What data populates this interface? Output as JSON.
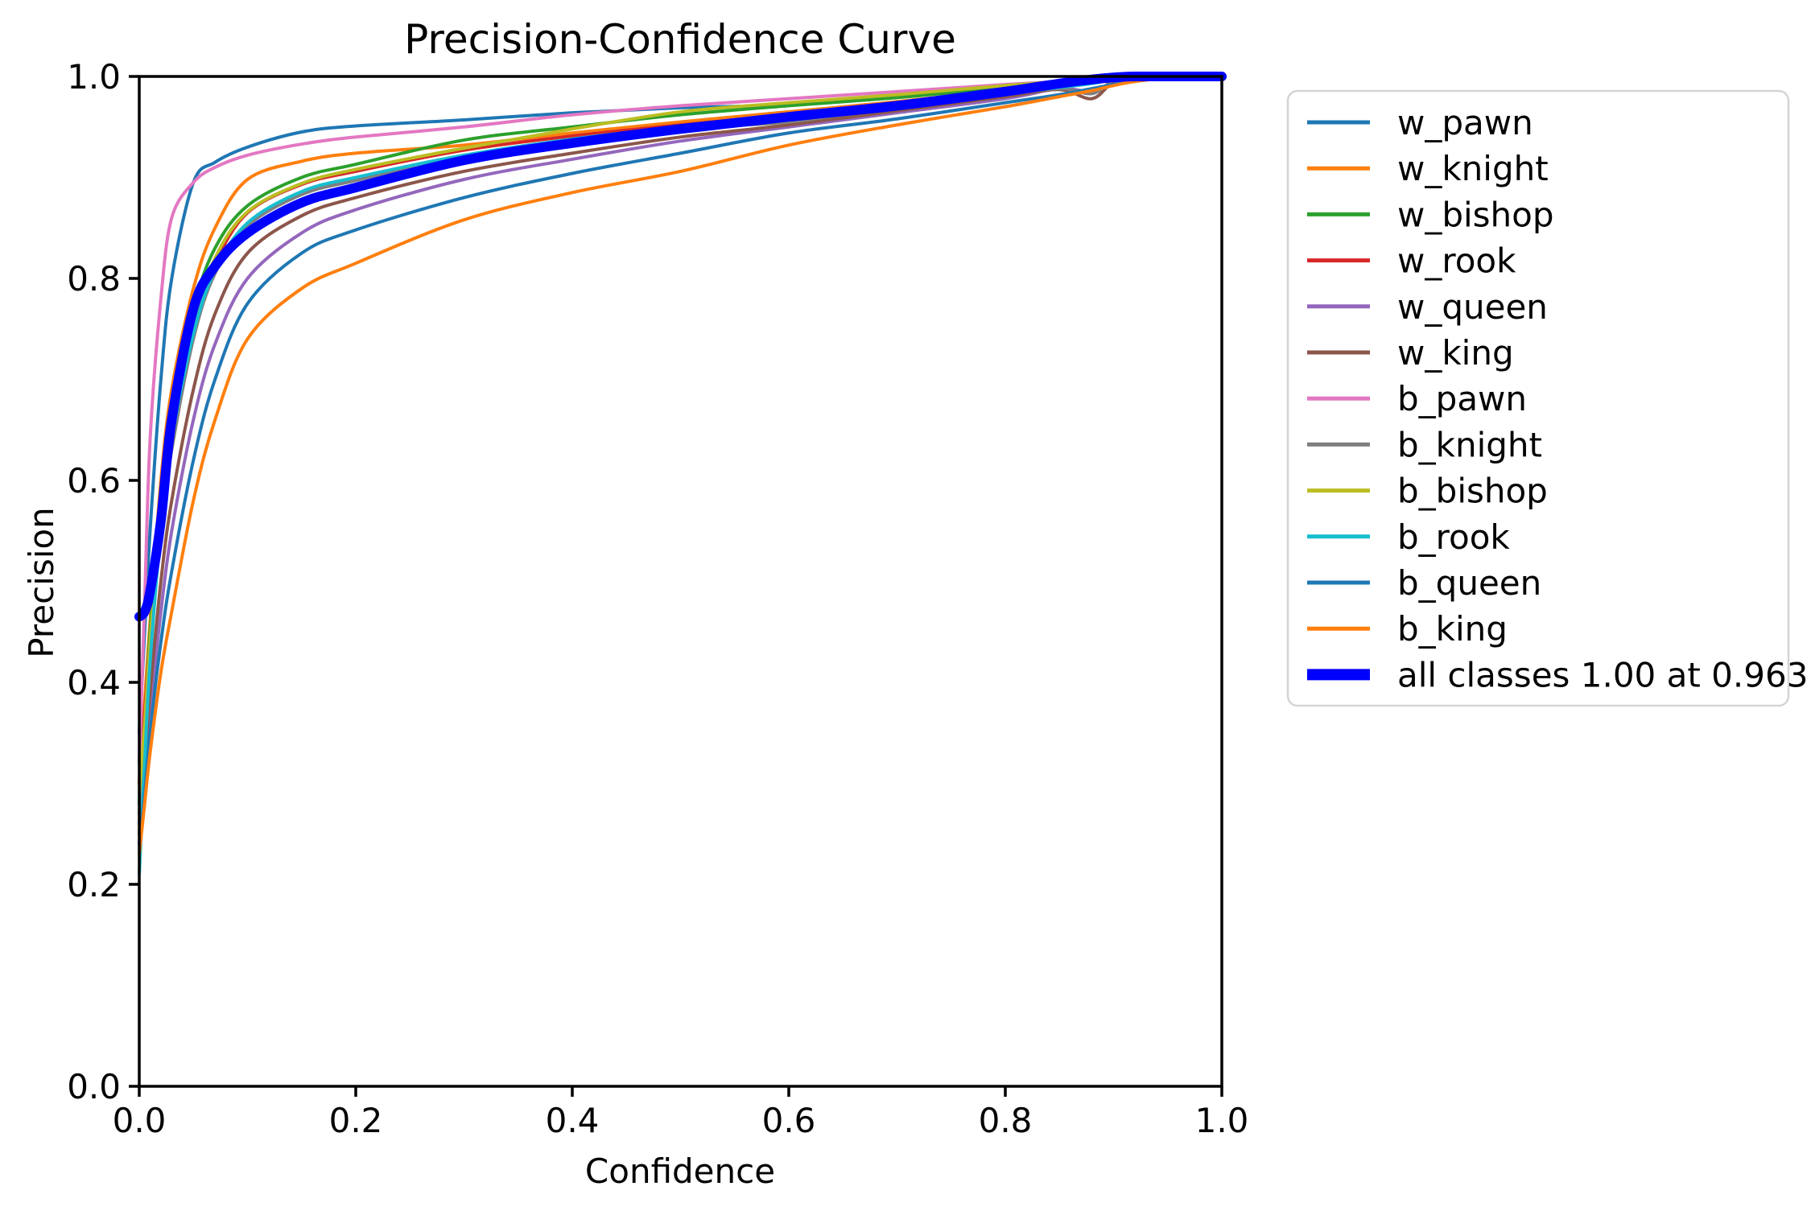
{
  "figure": {
    "background_color": "#ffffff",
    "axes_color": "#000000",
    "legend_border_color": "#d4d4d4",
    "legend_background_color": "#ffffff"
  },
  "chart_data": {
    "type": "line",
    "title": "Precision-Confidence Curve",
    "xlabel": "Confidence",
    "ylabel": "Precision",
    "xlim": [
      0.0,
      1.0
    ],
    "ylim": [
      0.0,
      1.0
    ],
    "grid": false,
    "legend_position": "outside-upper-right",
    "x_ticks": {
      "values": [
        0.0,
        0.2,
        0.4,
        0.6,
        0.8,
        1.0
      ],
      "labels": [
        "0.0",
        "0.2",
        "0.4",
        "0.6",
        "0.8",
        "1.0"
      ]
    },
    "y_ticks": {
      "values": [
        0.0,
        0.2,
        0.4,
        0.6,
        0.8,
        1.0
      ],
      "labels": [
        "0.0",
        "0.2",
        "0.4",
        "0.6",
        "0.8",
        "1.0"
      ]
    },
    "x": [
      0.0,
      0.005,
      0.01,
      0.02,
      0.03,
      0.05,
      0.07,
      0.1,
      0.15,
      0.2,
      0.3,
      0.4,
      0.5,
      0.6,
      0.7,
      0.8,
      0.85,
      0.88,
      0.9,
      0.92,
      0.963,
      1.0
    ],
    "series": [
      {
        "name": "w_pawn",
        "label": "w_pawn",
        "color": "#1f77b4",
        "linewidth": 4,
        "y": [
          0.35,
          0.45,
          0.55,
          0.7,
          0.8,
          0.895,
          0.915,
          0.93,
          0.945,
          0.951,
          0.957,
          0.964,
          0.969,
          0.972,
          0.981,
          0.99,
          0.994,
          0.996,
          0.998,
          1.0,
          1.0,
          1.0
        ]
      },
      {
        "name": "w_knight",
        "label": "w_knight",
        "color": "#ff7f0e",
        "linewidth": 4,
        "y": [
          0.3,
          0.38,
          0.46,
          0.6,
          0.69,
          0.79,
          0.85,
          0.898,
          0.916,
          0.924,
          0.932,
          0.944,
          0.955,
          0.965,
          0.975,
          0.987,
          0.992,
          0.995,
          0.997,
          1.0,
          1.0,
          1.0
        ]
      },
      {
        "name": "w_bishop",
        "label": "w_bishop",
        "color": "#2ca02c",
        "linewidth": 4,
        "y": [
          0.28,
          0.36,
          0.45,
          0.58,
          0.67,
          0.77,
          0.83,
          0.872,
          0.9,
          0.913,
          0.937,
          0.95,
          0.962,
          0.971,
          0.979,
          0.989,
          0.993,
          0.996,
          0.998,
          1.0,
          1.0,
          1.0
        ]
      },
      {
        "name": "w_rook",
        "label": "w_rook",
        "color": "#d62728",
        "linewidth": 4,
        "y": [
          0.3,
          0.37,
          0.44,
          0.56,
          0.64,
          0.755,
          0.815,
          0.865,
          0.893,
          0.906,
          0.927,
          0.941,
          0.952,
          0.962,
          0.972,
          0.984,
          0.99,
          0.994,
          0.997,
          0.999,
          1.0,
          1.0
        ]
      },
      {
        "name": "w_queen",
        "label": "w_queen",
        "color": "#9467bd",
        "linewidth": 4,
        "y": [
          0.25,
          0.31,
          0.37,
          0.47,
          0.55,
          0.66,
          0.735,
          0.8,
          0.845,
          0.868,
          0.898,
          0.918,
          0.936,
          0.95,
          0.964,
          0.978,
          0.988,
          0.985,
          0.993,
          0.997,
          1.0,
          1.0
        ]
      },
      {
        "name": "w_king",
        "label": "w_king",
        "color": "#8c564b",
        "linewidth": 4,
        "y": [
          0.26,
          0.32,
          0.39,
          0.5,
          0.58,
          0.69,
          0.765,
          0.825,
          0.862,
          0.88,
          0.906,
          0.924,
          0.94,
          0.952,
          0.966,
          0.98,
          0.987,
          0.978,
          0.995,
          0.998,
          1.0,
          1.0
        ]
      },
      {
        "name": "b_pawn",
        "label": "b_pawn",
        "color": "#e377c2",
        "linewidth": 4,
        "y": [
          0.32,
          0.48,
          0.64,
          0.78,
          0.86,
          0.895,
          0.91,
          0.922,
          0.933,
          0.94,
          0.95,
          0.962,
          0.971,
          0.978,
          0.985,
          0.992,
          0.995,
          0.997,
          0.999,
          1.0,
          1.0,
          1.0
        ]
      },
      {
        "name": "b_knight",
        "label": "b_knight",
        "color": "#7f7f7f",
        "linewidth": 4,
        "y": [
          0.27,
          0.35,
          0.43,
          0.55,
          0.63,
          0.74,
          0.805,
          0.852,
          0.883,
          0.897,
          0.92,
          0.936,
          0.948,
          0.955,
          0.97,
          0.982,
          0.988,
          0.983,
          0.996,
          0.999,
          1.0,
          1.0
        ]
      },
      {
        "name": "b_bishop",
        "label": "b_bishop",
        "color": "#bcbd22",
        "linewidth": 4,
        "y": [
          0.29,
          0.36,
          0.44,
          0.57,
          0.65,
          0.755,
          0.82,
          0.866,
          0.894,
          0.908,
          0.929,
          0.948,
          0.965,
          0.974,
          0.982,
          0.991,
          0.995,
          0.997,
          0.999,
          1.0,
          1.0,
          1.0
        ]
      },
      {
        "name": "b_rook",
        "label": "b_rook",
        "color": "#17becf",
        "linewidth": 4,
        "y": [
          0.21,
          0.32,
          0.42,
          0.55,
          0.64,
          0.745,
          0.808,
          0.855,
          0.886,
          0.9,
          0.922,
          0.938,
          0.95,
          0.96,
          0.971,
          0.983,
          0.989,
          0.993,
          0.997,
          0.999,
          1.0,
          1.0
        ]
      },
      {
        "name": "b_queen",
        "label": "b_queen",
        "color": "#1f77b4",
        "linewidth": 4,
        "y": [
          0.24,
          0.29,
          0.35,
          0.44,
          0.51,
          0.62,
          0.7,
          0.775,
          0.825,
          0.848,
          0.88,
          0.904,
          0.924,
          0.944,
          0.958,
          0.974,
          0.982,
          0.988,
          0.992,
          0.996,
          1.0,
          1.0
        ]
      },
      {
        "name": "b_king",
        "label": "b_king",
        "color": "#ff7f0e",
        "linewidth": 4,
        "y": [
          0.23,
          0.28,
          0.33,
          0.41,
          0.47,
          0.58,
          0.66,
          0.74,
          0.79,
          0.815,
          0.858,
          0.885,
          0.906,
          0.932,
          0.952,
          0.97,
          0.98,
          0.986,
          0.991,
          0.995,
          1.0,
          1.0
        ]
      },
      {
        "name": "all_classes",
        "label": "all classes 1.00 at 0.963",
        "color": "#0000ff",
        "linewidth": 12,
        "y": [
          0.465,
          0.47,
          0.49,
          0.56,
          0.66,
          0.77,
          0.812,
          0.845,
          0.875,
          0.89,
          0.917,
          0.934,
          0.948,
          0.96,
          0.971,
          0.985,
          0.993,
          0.997,
          0.999,
          1.0,
          1.0,
          1.0
        ]
      }
    ]
  }
}
